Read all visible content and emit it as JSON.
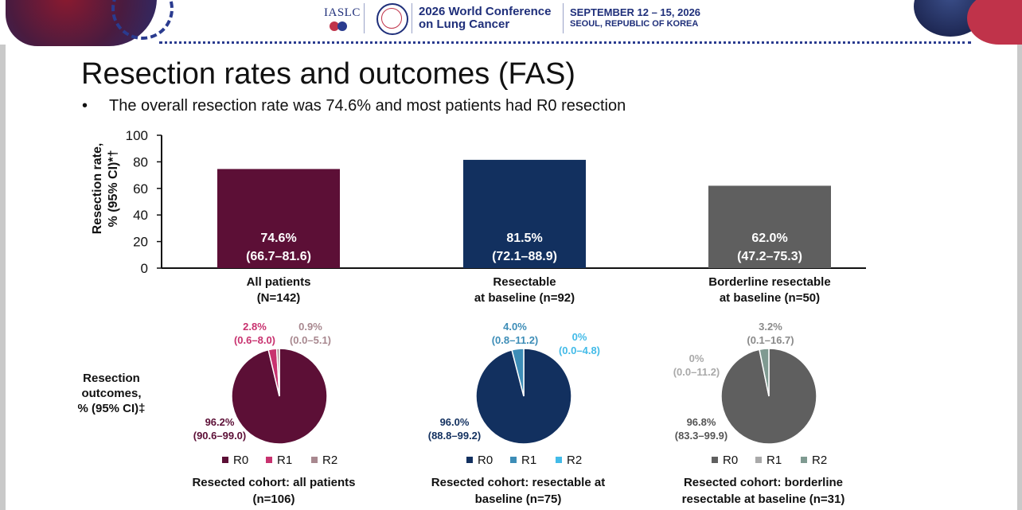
{
  "header": {
    "org": "IASLC",
    "conference_line1": "2026 World Conference",
    "conference_line2": "on Lung Cancer",
    "dates": "SEPTEMBER 12 – 15, 2026",
    "location": "SEOUL, REPUBLIC OF KOREA"
  },
  "slide": {
    "title": "Resection rates and outcomes (FAS)",
    "bullet_marker": "•",
    "bullet": "The overall resection rate was 74.6% and most patients had R0 resection",
    "outcomes_label": [
      "Resection",
      "outcomes,",
      "% (95% CI)‡"
    ]
  },
  "colors": {
    "all_patients": "#5c0f36",
    "all_r1": "#c8326f",
    "all_r2": "#a8888f",
    "resectable": "#12305f",
    "res_r1": "#3d8db7",
    "res_r2": "#43bbe8",
    "borderline": "#5f5f5f",
    "bl_r1": "#a9a9a9",
    "bl_r2": "#7f9a91"
  },
  "chart_data": [
    {
      "type": "bar",
      "ylabel_line1": "Resection rate,",
      "ylabel_line2": "% (95% CI)*†",
      "ylim": [
        0,
        100
      ],
      "yticks": [
        "0",
        "20",
        "40",
        "60",
        "80",
        "100"
      ],
      "categories": [
        {
          "line1": "All patients",
          "line2": "(N=142)"
        },
        {
          "line1": "Resectable",
          "line2": "at baseline (n=92)"
        },
        {
          "line1": "Borderline resectable",
          "line2": "at baseline (n=50)"
        }
      ],
      "values": [
        74.6,
        81.5,
        62.0
      ],
      "value_labels": [
        "74.6%",
        "81.5%",
        "62.0%"
      ],
      "ci_labels": [
        "(66.7–81.6)",
        "(72.1–88.9)",
        "(47.2–75.3)"
      ]
    },
    {
      "type": "pie",
      "title_line1": "Resected cohort: all patients",
      "title_line2": "(n=106)",
      "legend": [
        "R0",
        "R1",
        "R2"
      ],
      "values": [
        96.2,
        2.8,
        0.9
      ],
      "labels": [
        "96.2%",
        "2.8%",
        "0.9%"
      ],
      "ci": [
        "(90.6–99.0)",
        "(0.6–8.0)",
        "(0.0–5.1)"
      ]
    },
    {
      "type": "pie",
      "title_line1": "Resected cohort: resectable at",
      "title_line2": "baseline (n=75)",
      "legend": [
        "R0",
        "R1",
        "R2"
      ],
      "values": [
        96.0,
        4.0,
        0.0
      ],
      "labels": [
        "96.0%",
        "4.0%",
        "0%"
      ],
      "ci": [
        "(88.8–99.2)",
        "(0.8–11.2)",
        "(0.0–4.8)"
      ]
    },
    {
      "type": "pie",
      "title_line1": "Resected cohort: borderline",
      "title_line2": "resectable at baseline (n=31)",
      "legend": [
        "R0",
        "R1",
        "R2"
      ],
      "values": [
        96.8,
        0.0,
        3.2
      ],
      "labels": [
        "96.8%",
        "0%",
        "3.2%"
      ],
      "ci": [
        "(83.3–99.9)",
        "(0.0–11.2)",
        "(0.1–16.7)"
      ]
    }
  ]
}
